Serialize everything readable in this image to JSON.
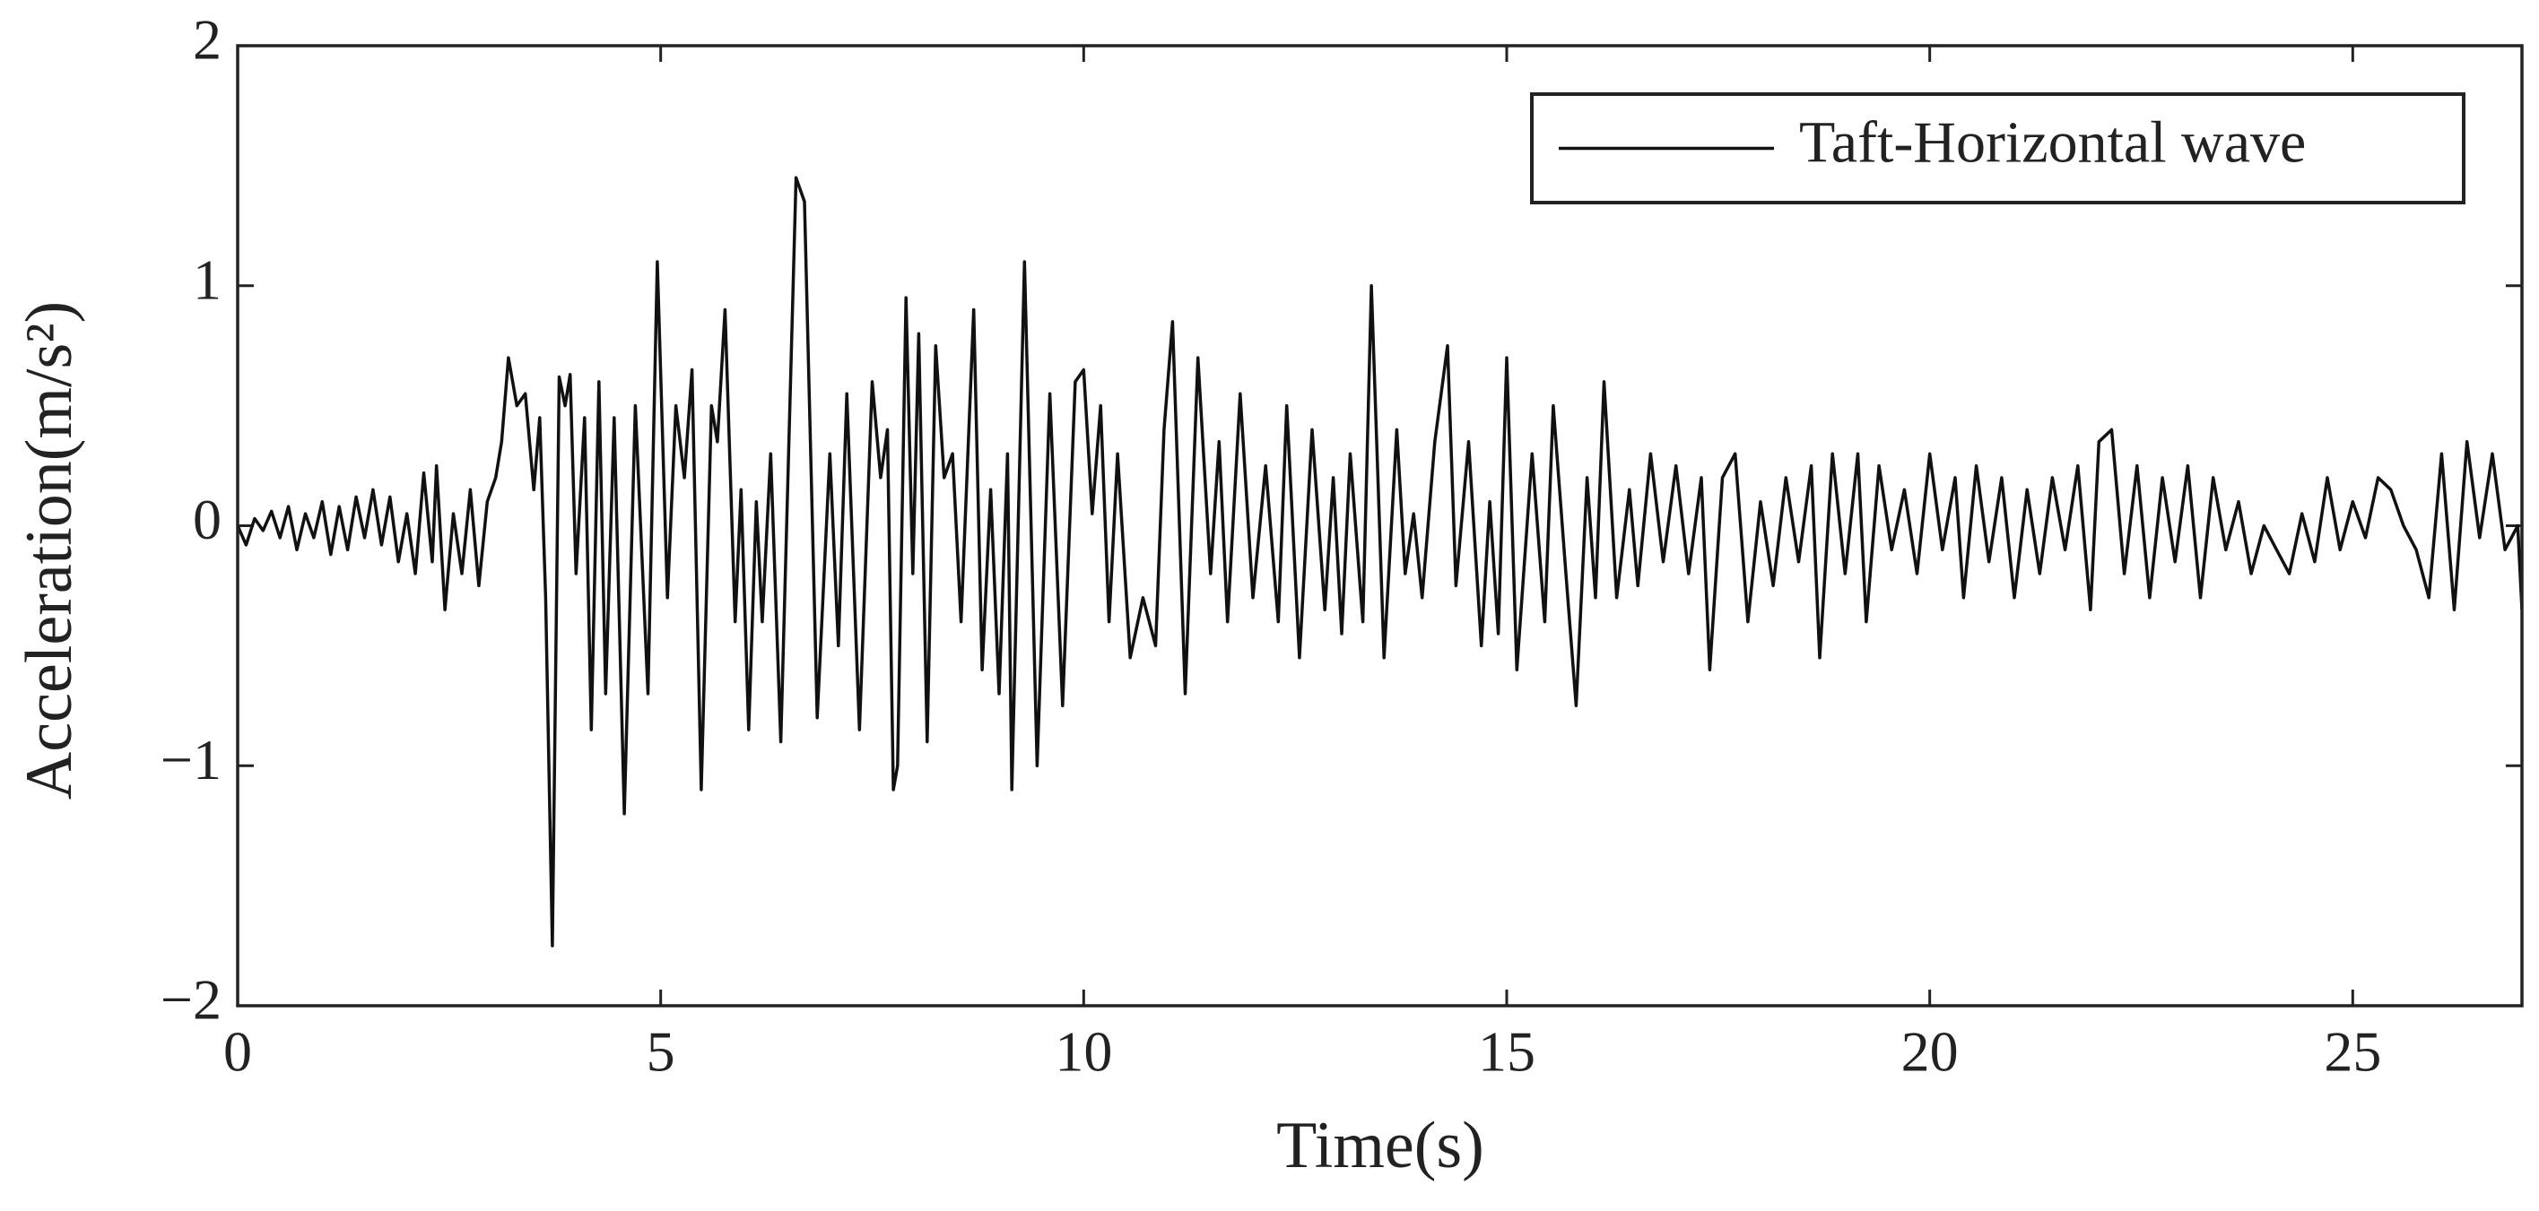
{
  "chart_data": {
    "type": "line",
    "xlabel": "Time(s)",
    "ylabel": "Acceleration(m/s²)",
    "xlim": [
      0,
      27
    ],
    "xticks": [
      0,
      5,
      10,
      15,
      20,
      25
    ],
    "ylim": [
      -2,
      2
    ],
    "yticks": [
      {
        "value": -2,
        "label": "−2"
      },
      {
        "value": -1,
        "label": "−1"
      },
      0,
      1,
      2
    ],
    "legend": "upper right",
    "grid": false,
    "series": [
      {
        "name": "Taft-Horizontal wave",
        "color": "#111111",
        "x": [
          0,
          0.1,
          0.2,
          0.3,
          0.4,
          0.5,
          0.6,
          0.7,
          0.8,
          0.9,
          1.0,
          1.1,
          1.2,
          1.3,
          1.4,
          1.5,
          1.6,
          1.7,
          1.8,
          1.9,
          2.0,
          2.1,
          2.2,
          2.3,
          2.35,
          2.45,
          2.55,
          2.65,
          2.75,
          2.85,
          2.95,
          3.05,
          3.12,
          3.2,
          3.3,
          3.4,
          3.5,
          3.57,
          3.64,
          3.72,
          3.8,
          3.87,
          3.93,
          4.0,
          4.1,
          4.18,
          4.27,
          4.35,
          4.45,
          4.57,
          4.7,
          4.85,
          4.96,
          5.08,
          5.18,
          5.28,
          5.37,
          5.48,
          5.6,
          5.67,
          5.76,
          5.88,
          5.95,
          6.04,
          6.13,
          6.2,
          6.3,
          6.42,
          6.6,
          6.7,
          6.85,
          7.0,
          7.1,
          7.2,
          7.35,
          7.5,
          7.6,
          7.68,
          7.75,
          7.8,
          7.9,
          7.98,
          8.05,
          8.15,
          8.25,
          8.35,
          8.45,
          8.55,
          8.7,
          8.8,
          8.9,
          9.0,
          9.1,
          9.15,
          9.3,
          9.45,
          9.6,
          9.75,
          9.9,
          10.0,
          10.1,
          10.2,
          10.3,
          10.4,
          10.55,
          10.7,
          10.85,
          10.95,
          11.05,
          11.2,
          11.35,
          11.5,
          11.6,
          11.7,
          11.85,
          12.0,
          12.15,
          12.3,
          12.4,
          12.55,
          12.7,
          12.85,
          12.95,
          13.05,
          13.15,
          13.3,
          13.4,
          13.55,
          13.7,
          13.8,
          13.9,
          14.0,
          14.15,
          14.3,
          14.4,
          14.55,
          14.7,
          14.8,
          14.9,
          15.0,
          15.12,
          15.3,
          15.45,
          15.55,
          15.7,
          15.82,
          15.95,
          16.05,
          16.15,
          16.3,
          16.45,
          16.55,
          16.7,
          16.85,
          17.0,
          17.15,
          17.3,
          17.4,
          17.55,
          17.7,
          17.85,
          18.0,
          18.15,
          18.3,
          18.45,
          18.6,
          18.7,
          18.85,
          19.0,
          19.15,
          19.25,
          19.4,
          19.55,
          19.7,
          19.85,
          20.0,
          20.15,
          20.3,
          20.4,
          20.55,
          20.7,
          20.85,
          21.0,
          21.15,
          21.3,
          21.45,
          21.6,
          21.75,
          21.9,
          22.0,
          22.15,
          22.3,
          22.45,
          22.6,
          22.75,
          22.9,
          23.05,
          23.2,
          23.35,
          23.5,
          23.65,
          23.8,
          23.95,
          24.1,
          24.25,
          24.4,
          24.55,
          24.7,
          24.85,
          25.0,
          25.15,
          25.3,
          25.45,
          25.6,
          25.75,
          25.9,
          26.05,
          26.2,
          26.35,
          26.5,
          26.65,
          26.8,
          26.95,
          27.0
        ],
        "values": [
          0,
          -0.08,
          0.03,
          -0.02,
          0.06,
          -0.05,
          0.08,
          -0.1,
          0.05,
          -0.05,
          0.1,
          -0.12,
          0.08,
          -0.1,
          0.12,
          -0.05,
          0.15,
          -0.08,
          0.12,
          -0.15,
          0.05,
          -0.2,
          0.22,
          -0.15,
          0.25,
          -0.35,
          0.05,
          -0.2,
          0.15,
          -0.25,
          0.1,
          0.2,
          0.35,
          0.7,
          0.5,
          0.55,
          0.15,
          0.45,
          -0.3,
          -1.75,
          0.62,
          0.5,
          0.63,
          -0.2,
          0.45,
          -0.85,
          0.6,
          -0.7,
          0.45,
          -1.2,
          0.5,
          -0.7,
          1.1,
          -0.3,
          0.5,
          0.2,
          0.65,
          -1.1,
          0.5,
          0.35,
          0.9,
          -0.4,
          0.15,
          -0.85,
          0.1,
          -0.4,
          0.3,
          -0.9,
          1.45,
          1.35,
          -0.8,
          0.3,
          -0.5,
          0.55,
          -0.85,
          0.6,
          0.2,
          0.4,
          -1.1,
          -1.0,
          0.95,
          -0.2,
          0.8,
          -0.9,
          0.75,
          0.2,
          0.3,
          -0.4,
          0.9,
          -0.6,
          0.15,
          -0.7,
          0.3,
          -1.1,
          1.1,
          -1.0,
          0.55,
          -0.75,
          0.6,
          0.65,
          0.05,
          0.5,
          -0.4,
          0.3,
          -0.55,
          -0.3,
          -0.5,
          0.4,
          0.85,
          -0.7,
          0.7,
          -0.2,
          0.35,
          -0.4,
          0.55,
          -0.3,
          0.25,
          -0.4,
          0.5,
          -0.55,
          0.4,
          -0.35,
          0.2,
          -0.45,
          0.3,
          -0.4,
          1.0,
          -0.55,
          0.4,
          -0.2,
          0.05,
          -0.3,
          0.35,
          0.75,
          -0.25,
          0.35,
          -0.5,
          0.1,
          -0.45,
          0.7,
          -0.6,
          0.3,
          -0.4,
          0.5,
          -0.2,
          -0.75,
          0.2,
          -0.3,
          0.6,
          -0.3,
          0.15,
          -0.25,
          0.3,
          -0.15,
          0.25,
          -0.2,
          0.2,
          -0.6,
          0.2,
          0.3,
          -0.4,
          0.1,
          -0.25,
          0.2,
          -0.15,
          0.25,
          -0.55,
          0.3,
          -0.2,
          0.3,
          -0.4,
          0.25,
          -0.1,
          0.15,
          -0.2,
          0.3,
          -0.1,
          0.2,
          -0.3,
          0.25,
          -0.15,
          0.2,
          -0.3,
          0.15,
          -0.2,
          0.2,
          -0.1,
          0.25,
          -0.35,
          0.35,
          0.4,
          -0.2,
          0.25,
          -0.3,
          0.2,
          -0.15,
          0.25,
          -0.3,
          0.2,
          -0.1,
          0.1,
          -0.2,
          0.0,
          -0.1,
          -0.2,
          0.05,
          -0.15,
          0.2,
          -0.1,
          0.1,
          -0.05,
          0.2,
          0.15,
          0.0,
          -0.1,
          -0.3,
          0.3,
          -0.35,
          0.35,
          -0.05,
          0.3,
          -0.1,
          0.0,
          -0.35
        ]
      }
    ]
  }
}
